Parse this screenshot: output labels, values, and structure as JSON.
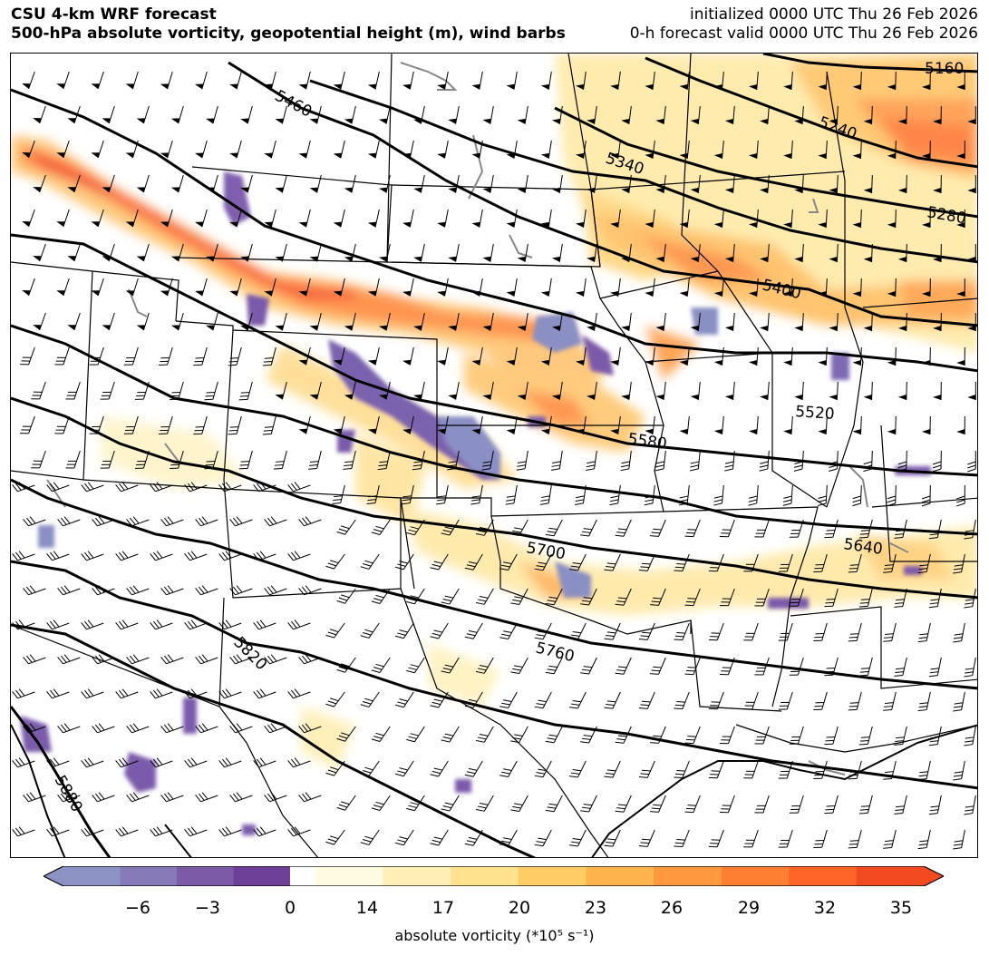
{
  "header": {
    "title_line1": "CSU 4-km WRF forecast",
    "title_line2": "500-hPa absolute vorticity, geopotential height (m), wind barbs",
    "init_line": "initialized 0000 UTC Thu 26 Feb 2026",
    "valid_line": "0-h forecast valid 0000 UTC Thu 26 Feb 2026"
  },
  "map": {
    "contour_labels": [
      "5160",
      "5240",
      "5280",
      "5340",
      "5400",
      "5460",
      "5520",
      "5580",
      "5640",
      "5700",
      "5760",
      "5820",
      "5880"
    ]
  },
  "colorbar": {
    "label": "absolute vorticity (*10⁵ s⁻¹)",
    "ticks": [
      "−6",
      "−3",
      "0",
      "14",
      "17",
      "20",
      "23",
      "26",
      "29",
      "32",
      "35"
    ],
    "colors_negative": [
      "#8a93c4",
      "#8579b8",
      "#7d5aa8",
      "#6e3f96"
    ],
    "colors_positive": [
      "#fffbe0",
      "#fff0b8",
      "#ffe28c",
      "#ffcc66",
      "#ffb34d",
      "#ff993d",
      "#ff7f32",
      "#ff6428",
      "#f24b22"
    ]
  }
}
